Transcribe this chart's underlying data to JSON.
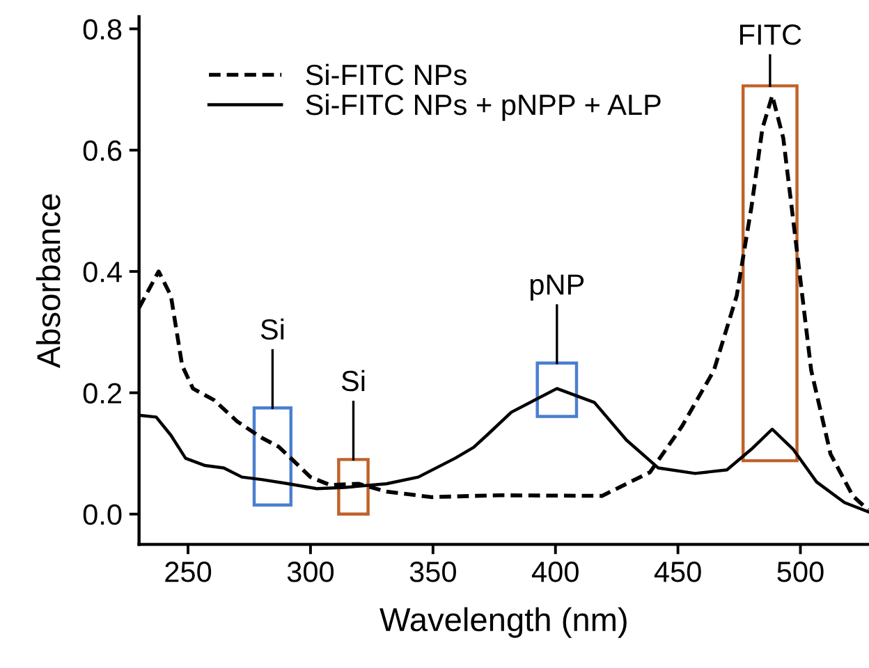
{
  "chart_data": {
    "type": "line",
    "xlabel": "Wavelength (nm)",
    "ylabel": "Absorbance",
    "xlim": [
      230,
      528
    ],
    "ylim": [
      -0.05,
      0.82
    ],
    "xticks": [
      250,
      300,
      350,
      400,
      450,
      500
    ],
    "yticks": [
      {
        "value": 0,
        "label": "0.0"
      },
      {
        "value": 0.2,
        "label": "0.2"
      },
      {
        "value": 0.4,
        "label": "0.4"
      },
      {
        "value": 0.6,
        "label": "0.6"
      },
      {
        "value": 0.8,
        "label": "0.8"
      }
    ],
    "grid": false,
    "legend": "top left",
    "marker": "none",
    "series": [
      {
        "name": "Si-FITC NPs",
        "color": "#000000",
        "line_style": "dashed",
        "x": [
          230,
          238,
          243,
          247.6,
          252,
          260.6,
          270,
          280,
          287,
          292,
          300,
          308,
          319.6,
          331,
          349.6,
          366.6,
          378,
          419,
          438.6,
          451.7,
          464.7,
          474,
          480,
          484.5,
          488.5,
          493,
          498.7,
          504.4,
          512.3,
          521.4,
          527.6
        ],
        "values": [
          0.34,
          0.4,
          0.36,
          0.245,
          0.207,
          0.188,
          0.153,
          0.126,
          0.111,
          0.092,
          0.061,
          0.048,
          0.05,
          0.037,
          0.028,
          0.03,
          0.031,
          0.03,
          0.069,
          0.145,
          0.237,
          0.36,
          0.506,
          0.636,
          0.69,
          0.62,
          0.43,
          0.237,
          0.099,
          0.03,
          0.007
        ]
      },
      {
        "name": "Si-FITC NPs + pNPP + ALP",
        "color": "#000000",
        "line_style": "solid",
        "x": [
          230,
          237,
          243,
          249,
          257,
          264.6,
          272,
          280,
          291,
          302.6,
          314,
          331,
          344,
          359,
          366.6,
          372,
          382,
          400.6,
          415.9,
          429,
          442,
          457,
          470,
          480,
          488.5,
          497,
          506.6,
          518,
          527.6
        ],
        "values": [
          0.163,
          0.16,
          0.13,
          0.092,
          0.08,
          0.076,
          0.061,
          0.057,
          0.05,
          0.042,
          0.044,
          0.05,
          0.061,
          0.092,
          0.11,
          0.13,
          0.168,
          0.207,
          0.184,
          0.122,
          0.076,
          0.067,
          0.073,
          0.107,
          0.14,
          0.107,
          0.053,
          0.019,
          0.004
        ]
      }
    ],
    "annotations": [
      "Si",
      "Si",
      {
        "text": "pNP",
        "x": 400.6,
        "y": 0.249
      },
      "FITC"
    ]
  }
}
